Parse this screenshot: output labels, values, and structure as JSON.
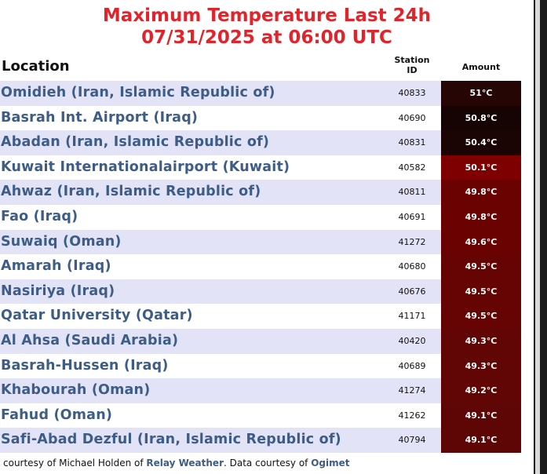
{
  "title": {
    "line1": "Maximum Temperature Last 24h",
    "line2": "07/31/2025 at 06:00 UTC"
  },
  "header": {
    "location": "Location",
    "station_line1": "Station",
    "station_line2": "ID",
    "amount": "Amount"
  },
  "rows": [
    {
      "location": "Omidieh (Iran, Islamic Republic of)",
      "station_id": "40833",
      "amount": "51°C",
      "color": "#260505"
    },
    {
      "location": "Basrah Int. Airport (Iraq)",
      "station_id": "40690",
      "amount": "50.8°C",
      "color": "#160303"
    },
    {
      "location": "Abadan (Iran, Islamic Republic of)",
      "station_id": "40831",
      "amount": "50.4°C",
      "color": "#1a0404"
    },
    {
      "location": "Kuwait Internationalairport (Kuwait)",
      "station_id": "40582",
      "amount": "50.1°C",
      "color": "#7f0000"
    },
    {
      "location": "Ahwaz (Iran, Islamic Republic of)",
      "station_id": "40811",
      "amount": "49.8°C",
      "color": "#6b0202"
    },
    {
      "location": "Fao (Iraq)",
      "station_id": "40691",
      "amount": "49.8°C",
      "color": "#6b0202"
    },
    {
      "location": "Suwaiq (Oman)",
      "station_id": "41272",
      "amount": "49.6°C",
      "color": "#6b0202"
    },
    {
      "location": "Amarah (Iraq)",
      "station_id": "40680",
      "amount": "49.5°C",
      "color": "#660404"
    },
    {
      "location": "Nasiriya (Iraq)",
      "station_id": "40676",
      "amount": "49.5°C",
      "color": "#660404"
    },
    {
      "location": "Qatar University (Qatar)",
      "station_id": "41171",
      "amount": "49.5°C",
      "color": "#660404"
    },
    {
      "location": "Al Ahsa (Saudi Arabia)",
      "station_id": "40420",
      "amount": "49.3°C",
      "color": "#620505"
    },
    {
      "location": "Basrah-Hussen (Iraq)",
      "station_id": "40689",
      "amount": "49.3°C",
      "color": "#620505"
    },
    {
      "location": "Khabourah (Oman)",
      "station_id": "41274",
      "amount": "49.2°C",
      "color": "#620505"
    },
    {
      "location": "Fahud (Oman)",
      "station_id": "41262",
      "amount": "49.1°C",
      "color": "#5e0606"
    },
    {
      "location": "Safi-Abad Dezful (Iran, Islamic Republic of)",
      "station_id": "40794",
      "amount": "49.1°C",
      "color": "#5e0606"
    }
  ],
  "credits": {
    "prefix": "courtesy of  Michael Holden of ",
    "relay": "Relay Weather",
    "middle": ". Data courtesy of ",
    "ogimet": "Ogimet"
  },
  "colors": {
    "title": "#e0242b",
    "location_text": "#3e5d86",
    "shaded_row": "#e3e3f7"
  }
}
